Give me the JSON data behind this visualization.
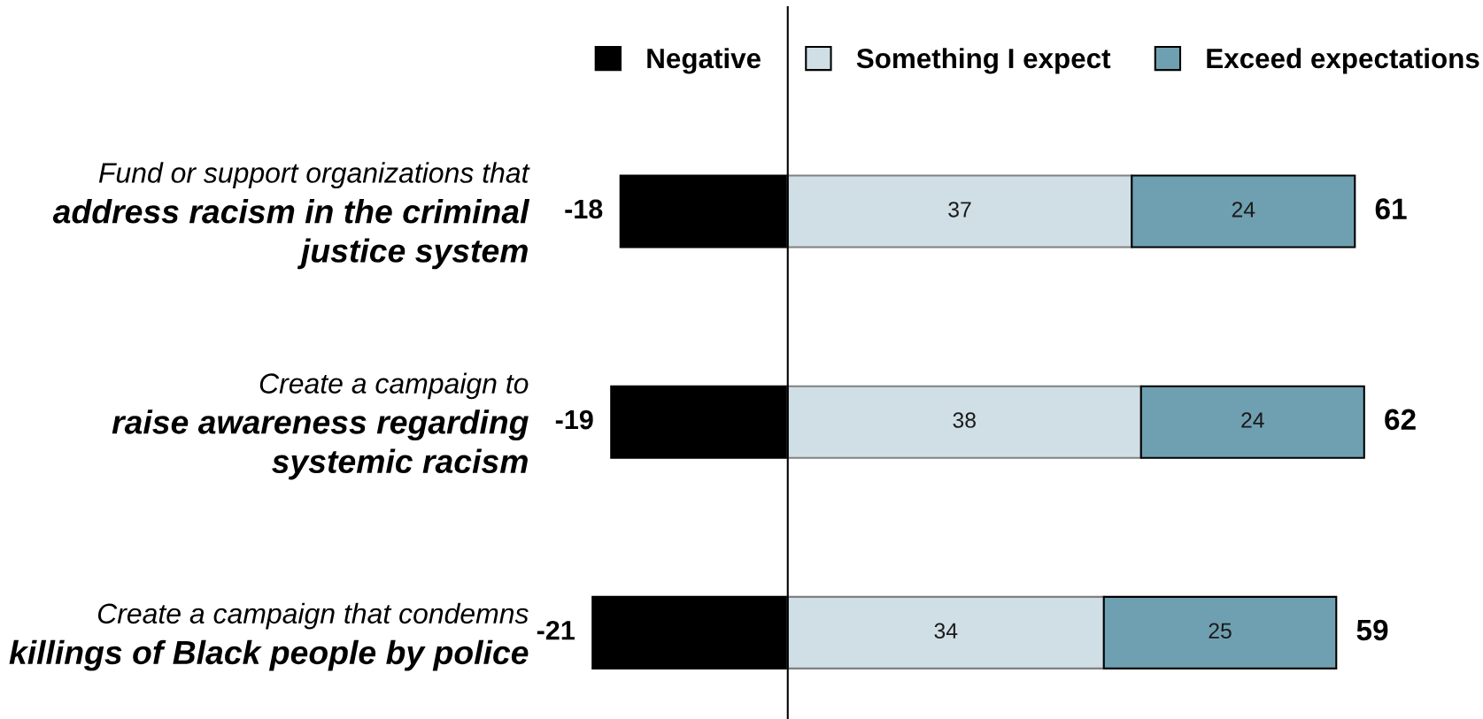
{
  "chart_data": {
    "type": "bar",
    "orientation": "horizontal",
    "stacked": true,
    "categories": [
      "Fund or support organizations that\naddress racism in the criminal\njustice system",
      "Create a campaign to\nraise awareness regarding\nsystemic racism",
      "Create a campaign that condemns\nkillings of Black people by police"
    ],
    "series": [
      {
        "name": "Negative",
        "color": "#000000",
        "values": [
          -18,
          -19,
          -21
        ]
      },
      {
        "name": "Something I expect",
        "color": "#cfdfe5",
        "values": [
          37,
          38,
          34
        ]
      },
      {
        "name": "Exceed expectations",
        "color": "#6fa0b1",
        "values": [
          24,
          24,
          25
        ]
      }
    ],
    "data_labels": true,
    "annotations": [
      {
        "text": "61",
        "x": 61,
        "y": "Fund or support organizations that\naddress racism in the criminal\njustice system"
      },
      {
        "text": "62",
        "x": 62,
        "y": "Create a campaign to\nraise awareness regarding\nsystemic racism"
      },
      {
        "text": "59",
        "x": 59,
        "y": "Create a campaign that condemns\nkillings of Black people by police"
      }
    ],
    "legend": "top right",
    "tick_labels": "y"
  }
}
